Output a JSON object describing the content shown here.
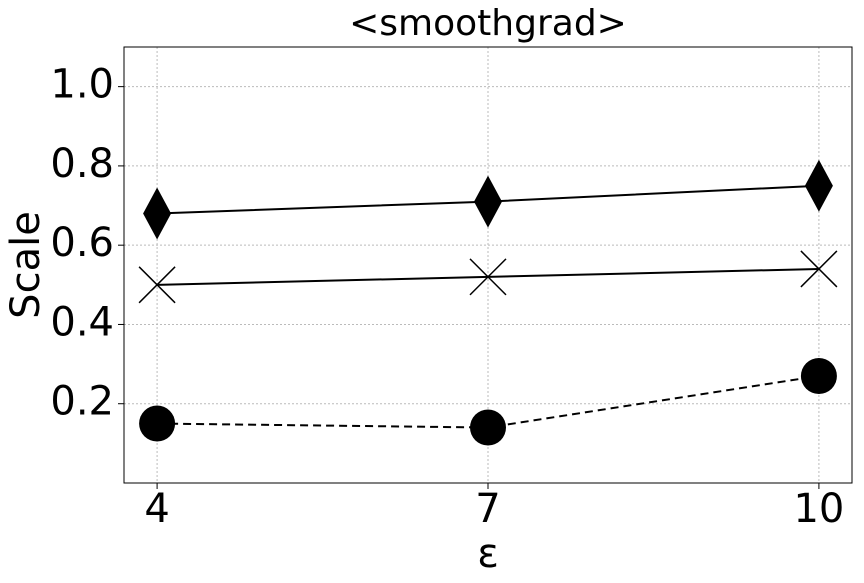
{
  "chart_data": {
    "type": "line",
    "title": "<smoothgrad>",
    "x_label": "ε",
    "y_label": "Scale",
    "x": [
      4,
      7,
      10
    ],
    "series": [
      {
        "color": "#000000",
        "marker": "diamond",
        "linestyle": "solid",
        "values": [
          0.68,
          0.71,
          0.75
        ]
      },
      {
        "color": "#000000",
        "marker": "x",
        "linestyle": "solid",
        "values": [
          0.5,
          0.52,
          0.54
        ]
      },
      {
        "color": "#000000",
        "marker": "circle",
        "linestyle": "dashed",
        "values": [
          0.15,
          0.14,
          0.27
        ]
      }
    ],
    "xlim": [
      3.7,
      10.3
    ],
    "xticks": [
      4,
      7,
      10
    ],
    "ylim": [
      0,
      1.1
    ],
    "yticks": [
      0.2,
      0.4,
      0.6,
      0.8,
      {
        "value": 1,
        "label": "1.0"
      }
    ],
    "grid": true
  }
}
